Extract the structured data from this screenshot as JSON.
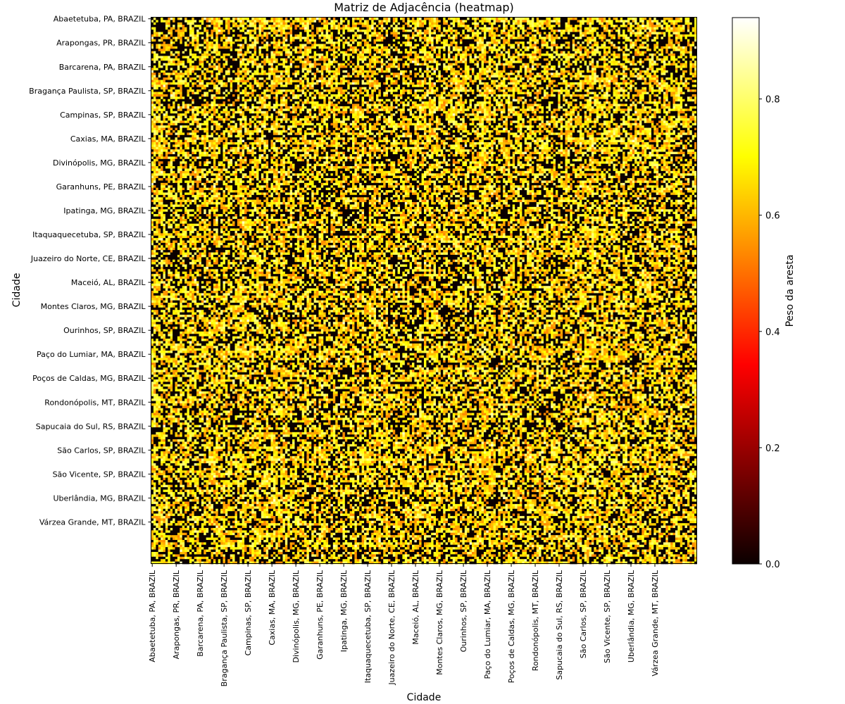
{
  "chart_data": {
    "type": "heatmap",
    "title": "Matriz de Adjacência (heatmap)",
    "xlabel": "Cidade",
    "ylabel": "Cidade",
    "matrix_size": 228,
    "tick_every": 10,
    "ticks": [
      "Abaetetuba, PA, BRAZIL",
      "Arapongas, PR, BRAZIL",
      "Barcarena, PA, BRAZIL",
      "Bragança Paulista, SP, BRAZIL",
      "Campinas, SP, BRAZIL",
      "Caxias, MA, BRAZIL",
      "Divinópolis, MG, BRAZIL",
      "Garanhuns, PE, BRAZIL",
      "Ipatinga, MG, BRAZIL",
      "Itaquaquecetuba, SP, BRAZIL",
      "Juazeiro do Norte, CE, BRAZIL",
      "Maceió, AL, BRAZIL",
      "Montes Claros, MG, BRAZIL",
      "Ourinhos, SP, BRAZIL",
      "Paço do Lumiar, MA, BRAZIL",
      "Poços de Caldas, MG, BRAZIL",
      "Rondonópolis, MT, BRAZIL",
      "Sapucaia do Sul, RS, BRAZIL",
      "São Carlos, SP, BRAZIL",
      "São Vicente, SP, BRAZIL",
      "Uberlândia, MG, BRAZIL",
      "Várzea Grande, MT, BRAZIL"
    ],
    "colormap": "hot",
    "value_range": [
      0,
      0.94
    ],
    "colorbar": {
      "label": "Peso da aresta",
      "ticks": [
        "0.0",
        "0.2",
        "0.4",
        "0.6",
        "0.8"
      ],
      "tick_values": [
        0.0,
        0.2,
        0.4,
        0.6,
        0.8
      ]
    },
    "diagonal": 0.0,
    "density_note_values": {
      "zero_fraction": 0.28,
      "typical_weight_min": 0.55,
      "typical_weight_max": 0.78
    }
  }
}
